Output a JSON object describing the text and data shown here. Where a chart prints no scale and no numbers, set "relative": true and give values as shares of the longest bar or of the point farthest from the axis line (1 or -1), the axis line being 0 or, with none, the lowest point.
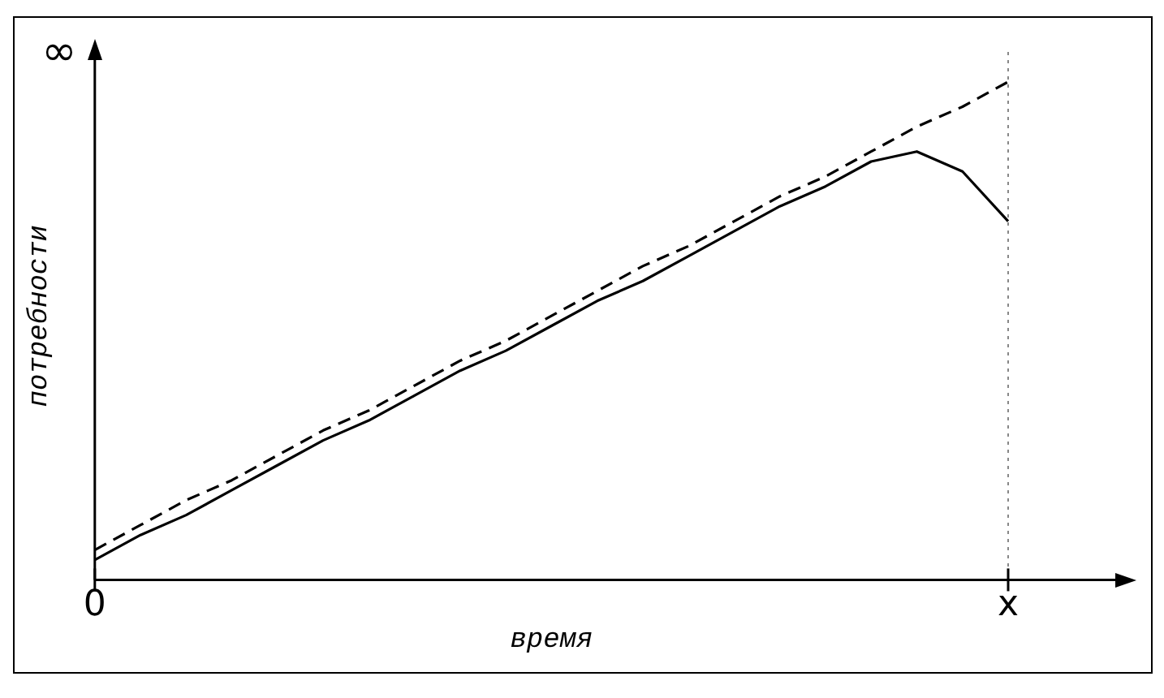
{
  "chart_data": {
    "type": "line",
    "relative": true,
    "xlabel": "время",
    "ylabel": "потребности",
    "categories": [
      "0",
      null,
      null,
      null,
      null,
      null,
      null,
      null,
      null,
      null,
      null,
      null,
      null,
      null,
      null,
      null,
      null,
      null,
      null,
      null,
      "x"
    ],
    "series": [
      {
        "color": "#000000",
        "line_style": "dashed",
        "values": [
          0.06,
          0.11,
          0.16,
          0.2,
          0.25,
          0.3,
          0.34,
          0.39,
          0.44,
          0.48,
          0.53,
          0.58,
          0.63,
          0.67,
          0.72,
          0.77,
          0.81,
          0.86,
          0.91,
          0.95,
          1
        ]
      },
      {
        "color": "#000000",
        "line_style": "solid",
        "values": [
          0.04,
          0.09,
          0.13,
          0.18,
          0.23,
          0.28,
          0.32,
          0.37,
          0.42,
          0.46,
          0.51,
          0.56,
          0.6,
          0.65,
          0.7,
          0.75,
          0.79,
          0.84,
          0.86,
          0.82,
          0.72
        ]
      }
    ],
    "ref_lines": [
      {
        "axis": "x",
        "value": "x",
        "color": "#888888",
        "line_style": "dotted"
      }
    ],
    "annotations": [
      "∞"
    ],
    "grid": false,
    "legend": false,
    "marker": "none"
  }
}
